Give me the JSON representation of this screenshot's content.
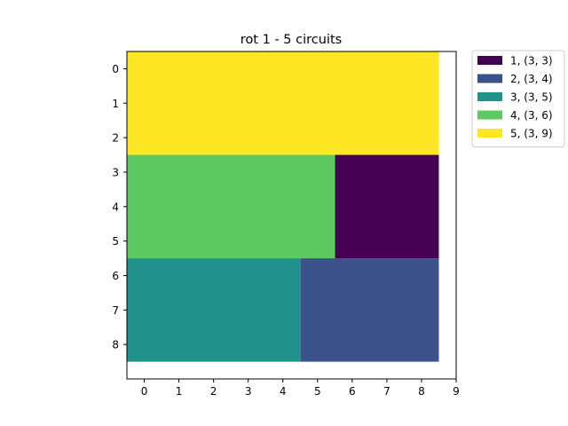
{
  "chart_data": {
    "type": "heatmap",
    "title": "rot 1  - 5 circuits",
    "xlabel": "",
    "ylabel": "",
    "xlim": [
      -0.5,
      9
    ],
    "ylim": [
      -0.5,
      9
    ],
    "y_inverted": true,
    "grid": false,
    "xticks": [
      0,
      1,
      2,
      3,
      4,
      5,
      6,
      7,
      8,
      9
    ],
    "yticks": [
      0,
      1,
      2,
      3,
      4,
      5,
      6,
      7,
      8
    ],
    "legend_position": "outside-top-right",
    "circuits": [
      {
        "label": "1, (3, 3)",
        "color": "#440154",
        "x": 6,
        "y": 3,
        "w": 3,
        "h": 3
      },
      {
        "label": "2, (3, 4)",
        "color": "#3b528b",
        "x": 5,
        "y": 6,
        "w": 4,
        "h": 3
      },
      {
        "label": "3, (3, 5)",
        "color": "#21918c",
        "x": 0,
        "y": 6,
        "w": 5,
        "h": 3
      },
      {
        "label": "4, (3, 6)",
        "color": "#5ec962",
        "x": 0,
        "y": 3,
        "w": 6,
        "h": 3
      },
      {
        "label": "5, (3, 9)",
        "color": "#fde725",
        "x": 0,
        "y": 0,
        "w": 9,
        "h": 3
      }
    ]
  }
}
